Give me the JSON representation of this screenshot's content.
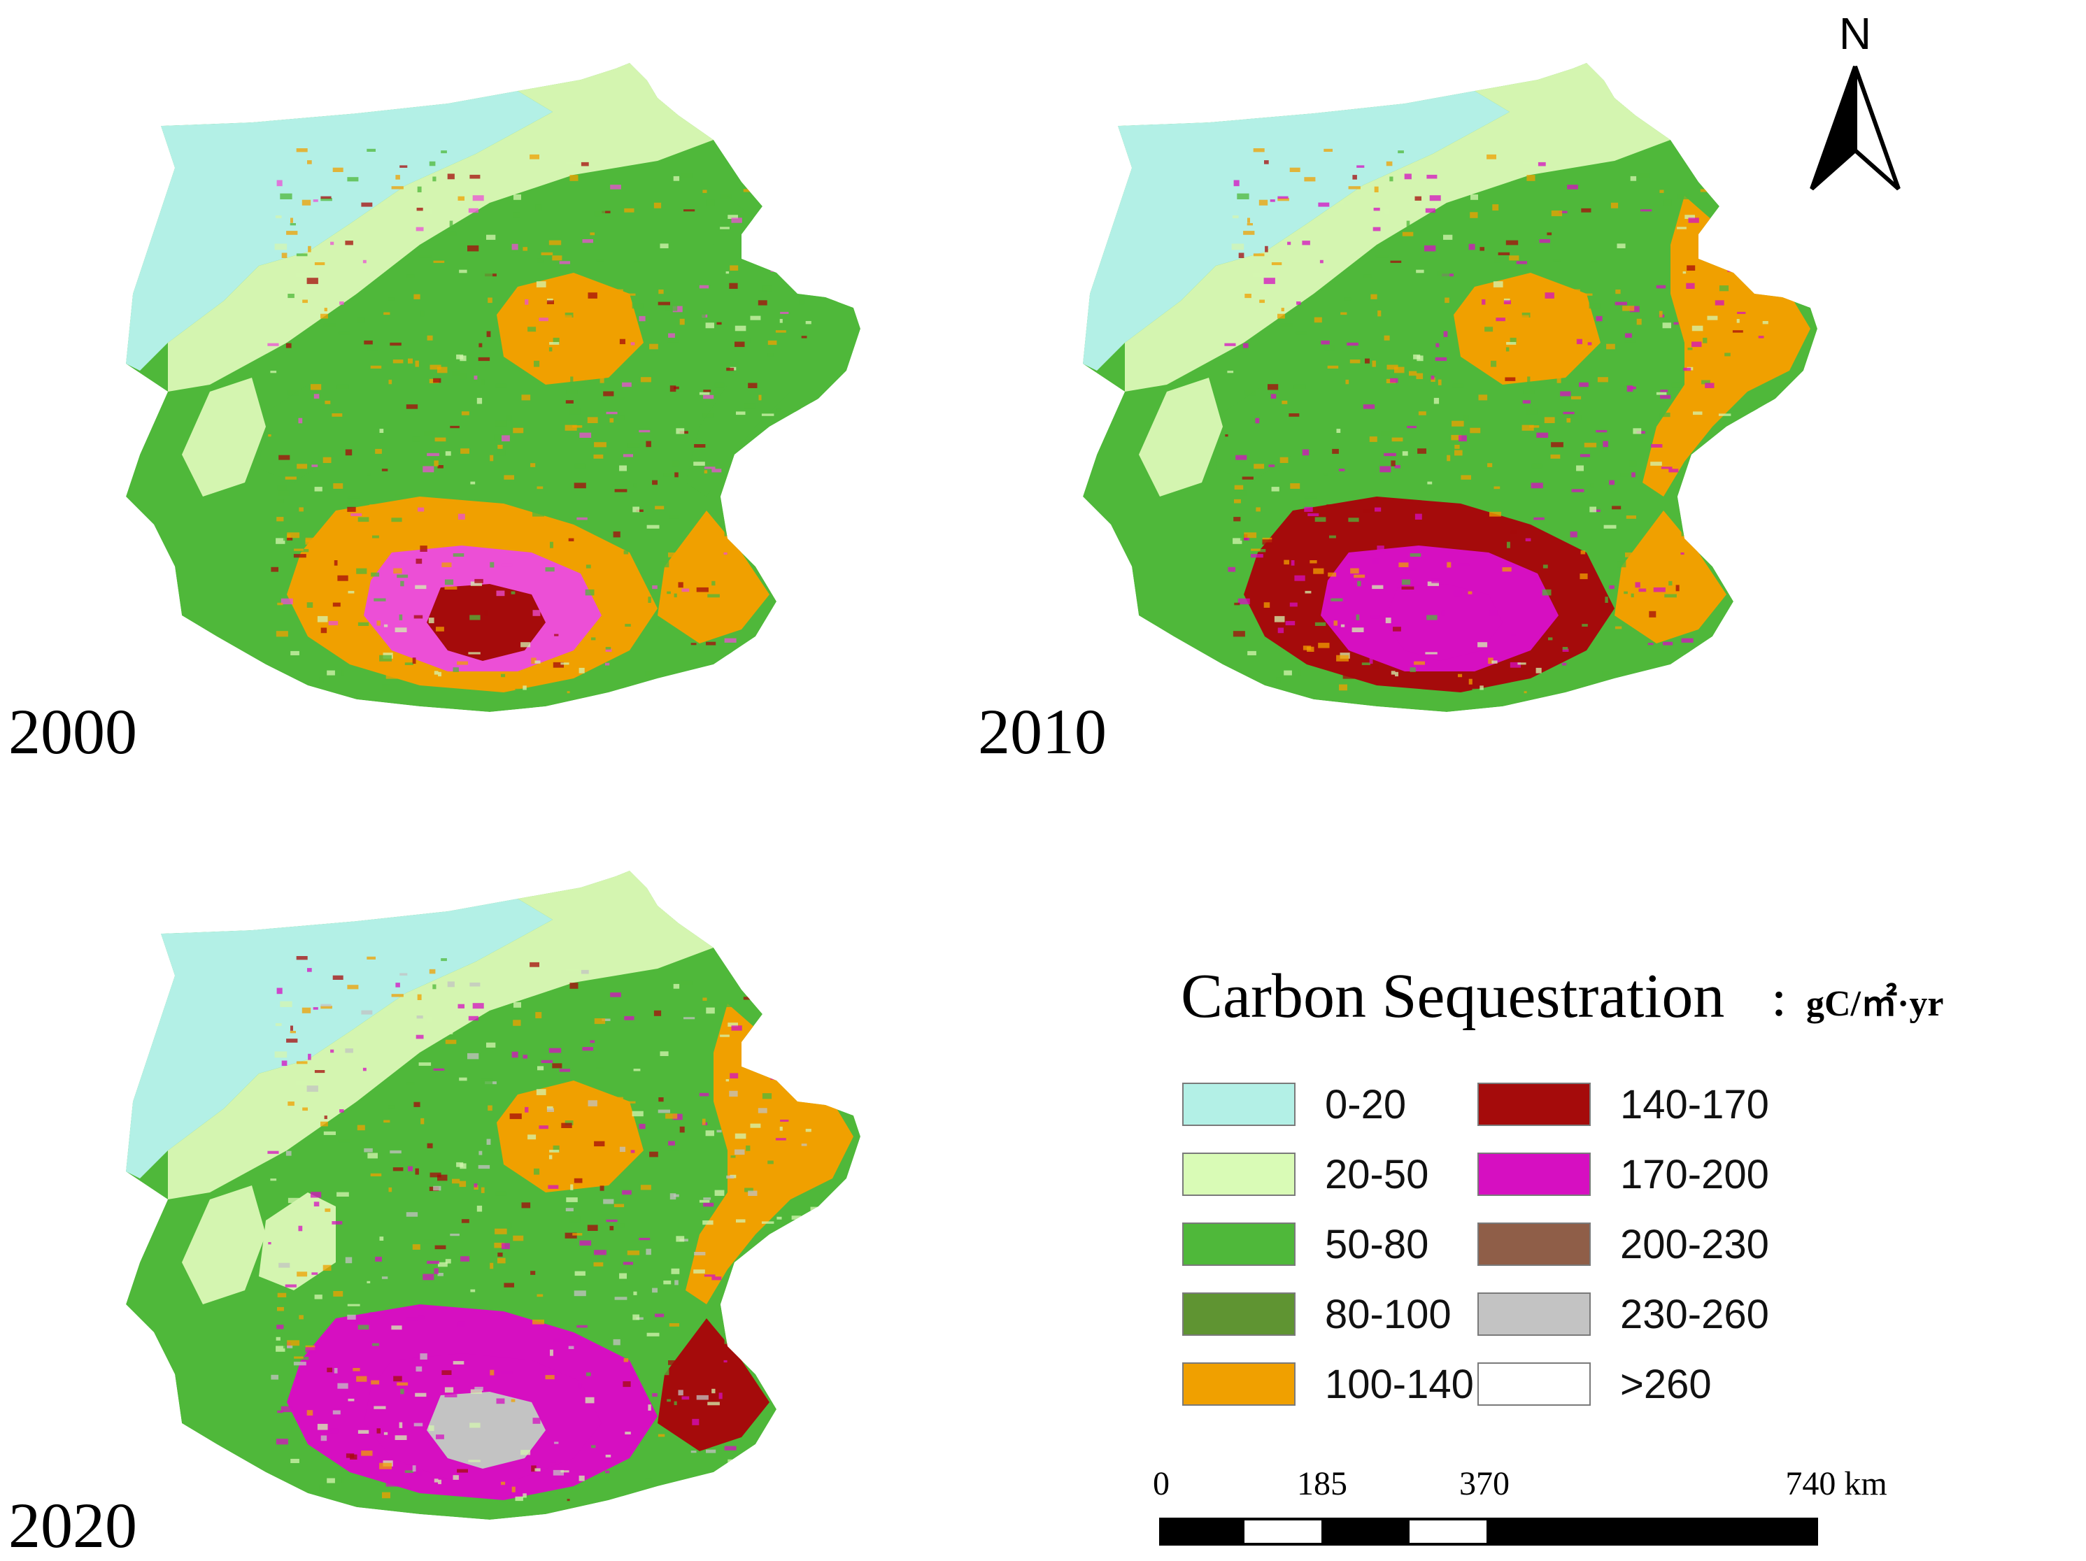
{
  "maps": [
    {
      "year": "2000",
      "colors": [
        "#4fb83a",
        "#4fb83a",
        "#f0a000",
        "#f0a000",
        "#ec4fd6",
        "#a50b0b",
        "#f0a000",
        "#4fb83a",
        "#d4f5b0"
      ]
    },
    {
      "year": "2010",
      "colors": [
        "#4fb83a",
        "#f0a000",
        "#f0a000",
        "#a50b0b",
        "#d60fc1",
        "#d60fc1",
        "#f0a000",
        "#4fb83a",
        "#d4f5b0"
      ]
    },
    {
      "year": "2020",
      "colors": [
        "#4fb83a",
        "#f0a000",
        "#a50b0b",
        "#d60fc1",
        "#d60fc1",
        "#c3c3c3",
        "#f0a000",
        "#d4f5b0",
        "#d4f5b0"
      ]
    }
  ],
  "legend": {
    "title": "Carbon Sequestration",
    "unit": "：gC/㎡·yr",
    "classes": [
      {
        "label": "0-20",
        "color": "#b3f0e6"
      },
      {
        "label": "20-50",
        "color": "#d9fbb6"
      },
      {
        "label": "50-80",
        "color": "#4fb83a"
      },
      {
        "label": "80-100",
        "color": "#5f9432"
      },
      {
        "label": "100-140",
        "color": "#f0a000"
      },
      {
        "label": "140-170",
        "color": "#a50b0b"
      },
      {
        "label": "170-200",
        "color": "#d60fc1"
      },
      {
        "label": "200-230",
        "color": "#8f5e48"
      },
      {
        "label": "230-260",
        "color": "#c3c3c3"
      },
      {
        "label": ">260",
        "color": "#ffffff"
      }
    ]
  },
  "scale_bar": {
    "ticks": [
      0,
      185,
      370,
      740
    ],
    "labels": [
      "0",
      "185",
      "370",
      "740 km"
    ]
  },
  "north_arrow": {
    "label": "N",
    "icon": "north-arrow-icon"
  }
}
